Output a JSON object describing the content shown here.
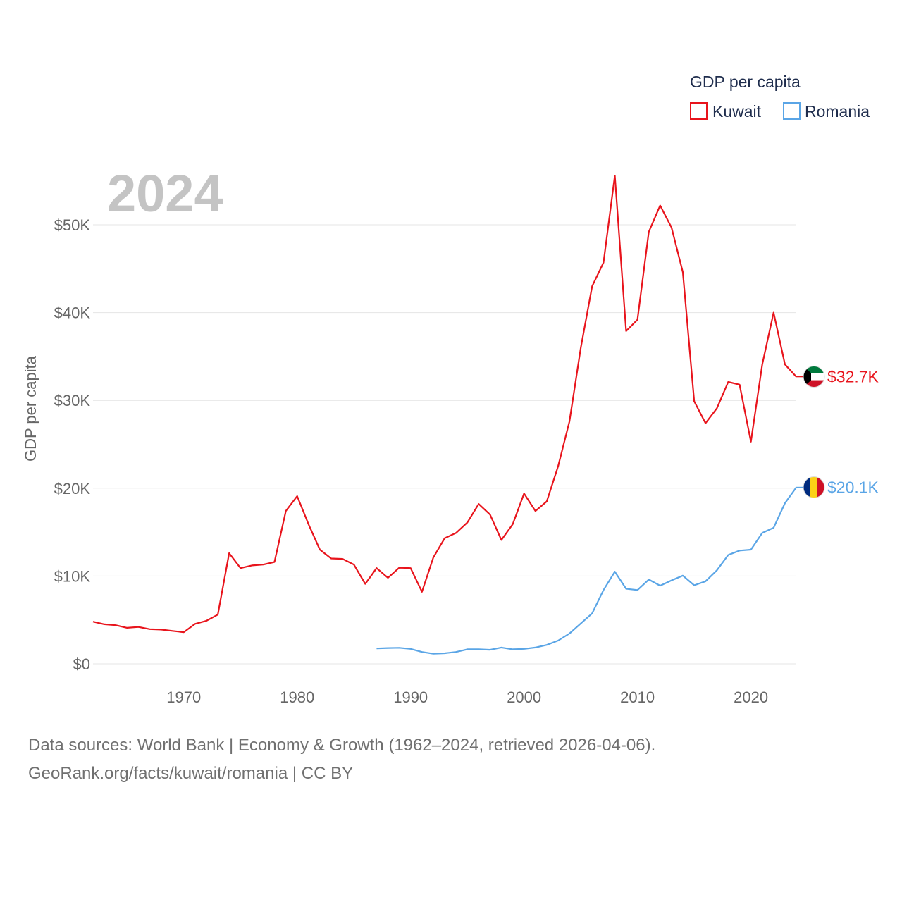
{
  "chart_data": {
    "type": "line",
    "title": "GDP per capita",
    "ylabel": "GDP per capita",
    "xlabel": "",
    "year_label": "2024",
    "xlim": [
      1962,
      2024
    ],
    "ylim": [
      0,
      56000
    ],
    "x_ticks": [
      {
        "value": 1970,
        "label": "1970"
      },
      {
        "value": 1980,
        "label": "1980"
      },
      {
        "value": 1990,
        "label": "1990"
      },
      {
        "value": 2000,
        "label": "2000"
      },
      {
        "value": 2010,
        "label": "2010"
      },
      {
        "value": 2020,
        "label": "2020"
      }
    ],
    "y_ticks": [
      {
        "value": 0,
        "label": "$0"
      },
      {
        "value": 10000,
        "label": "$10K"
      },
      {
        "value": 20000,
        "label": "$20K"
      },
      {
        "value": 30000,
        "label": "$30K"
      },
      {
        "value": 40000,
        "label": "$40K"
      },
      {
        "value": 50000,
        "label": "$50K"
      }
    ],
    "legend_title": "GDP per capita",
    "series": [
      {
        "name": "Kuwait",
        "color": "#e8141c",
        "end_label": "$32.7K",
        "flag": "kuwait-flag",
        "x": [
          1962,
          1963,
          1964,
          1965,
          1966,
          1967,
          1968,
          1969,
          1970,
          1971,
          1972,
          1973,
          1974,
          1975,
          1976,
          1977,
          1978,
          1979,
          1980,
          1981,
          1982,
          1983,
          1984,
          1985,
          1986,
          1987,
          1988,
          1989,
          1990,
          1991,
          1992,
          1993,
          1994,
          1995,
          1996,
          1997,
          1998,
          1999,
          2000,
          2001,
          2002,
          2003,
          2004,
          2005,
          2006,
          2007,
          2008,
          2009,
          2010,
          2011,
          2012,
          2013,
          2014,
          2015,
          2016,
          2017,
          2018,
          2019,
          2020,
          2021,
          2022,
          2023,
          2024
        ],
        "values": [
          4800,
          4500,
          4400,
          4100,
          4200,
          3950,
          3900,
          3750,
          3600,
          4550,
          4900,
          5600,
          12600,
          10900,
          11200,
          11300,
          11600,
          17400,
          19100,
          15900,
          13000,
          12000,
          11950,
          11300,
          9100,
          10900,
          9800,
          10950,
          10900,
          8200,
          12100,
          14300,
          14900,
          16100,
          18200,
          17000,
          14100,
          15900,
          19400,
          17400,
          18500,
          22500,
          27600,
          36000,
          43000,
          45700,
          55600,
          37900,
          39200,
          49200,
          52200,
          49700,
          44600,
          29900,
          27400,
          29100,
          32100,
          31800,
          25300,
          34100,
          40000,
          34100,
          32700
        ]
      },
      {
        "name": "Romania",
        "color": "#5aa5e6",
        "end_label": "$20.1K",
        "flag": "romania-flag",
        "x": [
          1987,
          1988,
          1989,
          1990,
          1991,
          1992,
          1993,
          1994,
          1995,
          1996,
          1997,
          1998,
          1999,
          2000,
          2001,
          2002,
          2003,
          2004,
          2005,
          2006,
          2007,
          2008,
          2009,
          2010,
          2011,
          2012,
          2013,
          2014,
          2015,
          2016,
          2017,
          2018,
          2019,
          2020,
          2021,
          2022,
          2023,
          2024
        ],
        "values": [
          1750,
          1800,
          1820,
          1700,
          1350,
          1150,
          1200,
          1350,
          1650,
          1650,
          1600,
          1850,
          1650,
          1700,
          1850,
          2150,
          2650,
          3450,
          4600,
          5750,
          8400,
          10500,
          8550,
          8400,
          9600,
          8900,
          9500,
          10050,
          8950,
          9400,
          10650,
          12400,
          12900,
          13000,
          14900,
          15500,
          18300,
          20100
        ]
      }
    ]
  },
  "footer": {
    "line1": "Data sources: World Bank | Economy & Growth (1962–2024, retrieved 2026-04-06).",
    "line2": "GeoRank.org/facts/kuwait/romania | CC BY"
  }
}
